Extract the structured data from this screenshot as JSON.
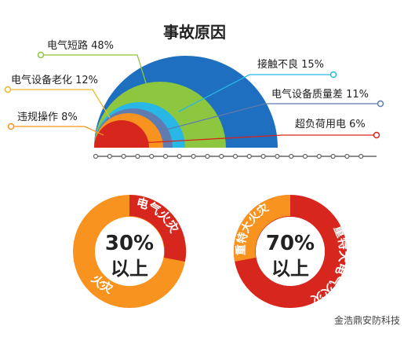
{
  "title": "事故原因",
  "causes": [
    {
      "label": "电气短路 48%",
      "color": "#8dc63f"
    },
    {
      "label": "电气设备老化 12%",
      "color": "#e8b92b"
    },
    {
      "label": "违规操作 8%",
      "color": "#f7931e"
    },
    {
      "label": "接触不良 15%",
      "color": "#29b8e5"
    },
    {
      "label": "电气设备质量差 11%",
      "color": "#5f7bb0"
    },
    {
      "label": "超负荷用电 6%",
      "color": "#d7261e"
    }
  ],
  "rings": [
    {
      "center": [
        "30%",
        "以上"
      ],
      "red_label": "电气火灾",
      "orange_label": "火灾"
    },
    {
      "center": [
        "70%",
        "以上"
      ],
      "red_label": "重特大电气火灾",
      "orange_label": "重特大火灾"
    }
  ],
  "watermark": "金浩鼎安防科技"
}
